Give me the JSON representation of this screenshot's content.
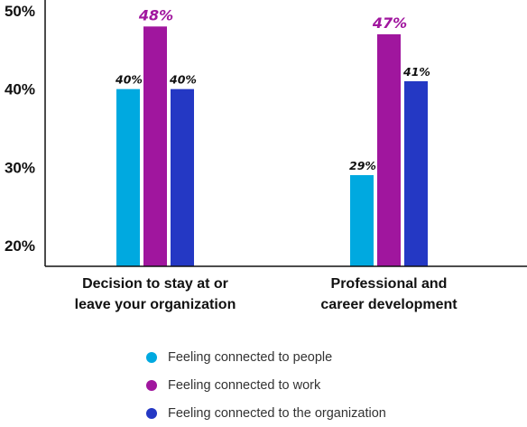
{
  "chart_data": {
    "type": "bar",
    "categories": [
      [
        "Decision to stay at or",
        "leave your organization"
      ],
      [
        "Professional and",
        "career development"
      ]
    ],
    "series": [
      {
        "name": "Feeling connected to people",
        "color": "#00A9E0",
        "values": [
          40,
          29
        ],
        "labels": [
          "40%",
          "29%"
        ]
      },
      {
        "name": "Feeling connected to work",
        "color": "#A0169E",
        "values": [
          48,
          47
        ],
        "labels": [
          "48%",
          "47%"
        ]
      },
      {
        "name": "Feeling connected to the organization",
        "color": "#2438C4",
        "values": [
          40,
          41
        ],
        "labels": [
          "40%",
          "41%"
        ]
      }
    ],
    "yticks": [
      {
        "value": 20,
        "label": "20%"
      },
      {
        "value": 30,
        "label": "30%"
      },
      {
        "value": 40,
        "label": "40%"
      },
      {
        "value": 50,
        "label": "50%"
      }
    ],
    "ylim": [
      17.5,
      50
    ],
    "highlight_series": 1,
    "grid": false,
    "legend_position": "bottom"
  }
}
